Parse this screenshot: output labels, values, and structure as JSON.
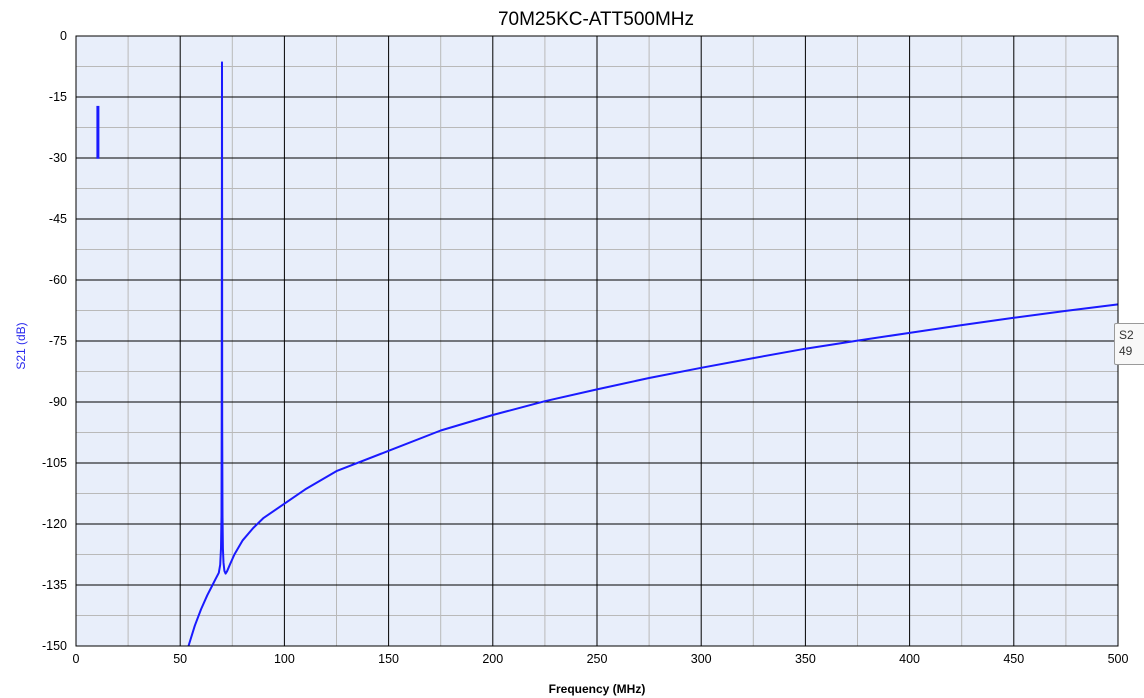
{
  "chart_data": {
    "type": "line",
    "title": "70M25KC-ATT500MHz",
    "xlabel": "Frequency (MHz)",
    "ylabel": "S21 (dB)",
    "xlim": [
      0,
      500
    ],
    "ylim": [
      -150,
      0
    ],
    "x_ticks": [
      0,
      50,
      100,
      150,
      200,
      250,
      300,
      350,
      400,
      450,
      500
    ],
    "y_ticks": [
      0,
      -15,
      -30,
      -45,
      -60,
      -75,
      -90,
      -105,
      -120,
      -135,
      -150
    ],
    "grid": true,
    "legend": "none",
    "colors": {
      "plot_background": "#e8eefa",
      "major_grid": "#000000",
      "minor_grid": "#b9b9b9",
      "series": "#1a1aff",
      "ylabel": "#2a2aee"
    },
    "series": [
      {
        "x": [
          54,
          57,
          60,
          63,
          65,
          67,
          68.5,
          69.2,
          69.6,
          69.8,
          69.9,
          70.0,
          70.05,
          70.1,
          70.15,
          70.3,
          70.5,
          70.8,
          71.2,
          71.8,
          72.5,
          74,
          76,
          80,
          85,
          90,
          100,
          110,
          125,
          150,
          175,
          200,
          225,
          250,
          275,
          300,
          325,
          350,
          375,
          400,
          425,
          450,
          475,
          500
        ],
        "y": [
          -150,
          -145,
          -141,
          -137.5,
          -135.5,
          -133.5,
          -132,
          -130,
          -126,
          -118,
          -95,
          -40,
          -6.5,
          -40,
          -95,
          -118,
          -126,
          -129.5,
          -131.5,
          -132.2,
          -131.6,
          -129.8,
          -127.5,
          -124,
          -121,
          -118.5,
          -115,
          -111.5,
          -107,
          -102,
          -97,
          -93.2,
          -89.8,
          -86.9,
          -84.1,
          -81.6,
          -79.2,
          -76.9,
          -74.9,
          -73,
          -71.1,
          -69.3,
          -67.6,
          -66
        ]
      },
      {
        "x": [
          10.5,
          10.5
        ],
        "y": [
          -30.2,
          -17.2
        ]
      }
    ]
  },
  "tooltip": {
    "line1": "S2",
    "line2": "49"
  }
}
